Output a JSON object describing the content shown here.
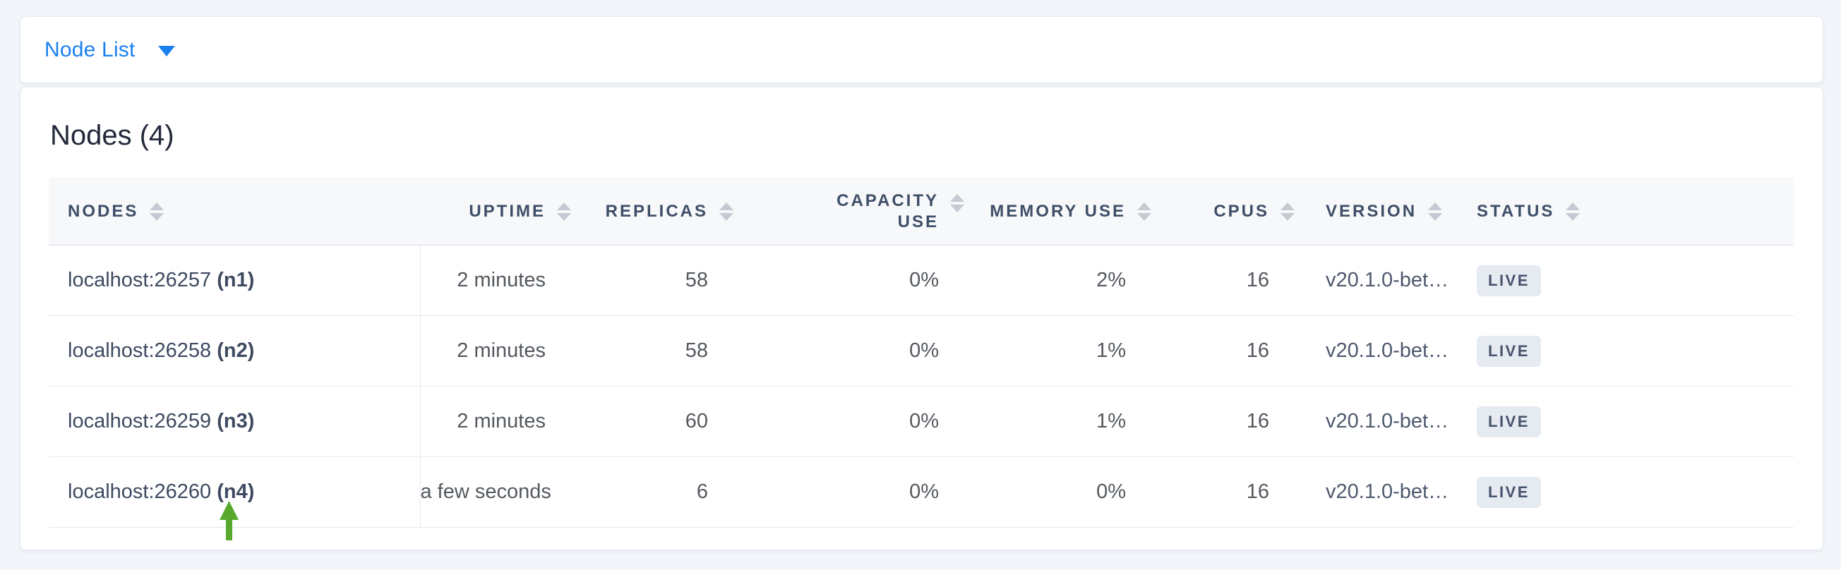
{
  "toolbar": {
    "view_selector": {
      "label": "Node List",
      "icon": "caret-down-icon"
    }
  },
  "content": {
    "title": "Nodes (4)",
    "table": {
      "columns": [
        {
          "key": "nodes",
          "label": "NODES",
          "align": "left",
          "sortable": true,
          "wrap": false
        },
        {
          "key": "uptime",
          "label": "UPTIME",
          "align": "right",
          "sortable": true,
          "wrap": false
        },
        {
          "key": "replicas",
          "label": "REPLICAS",
          "align": "right",
          "sortable": true,
          "wrap": false
        },
        {
          "key": "capacity_use",
          "label": "CAPACITY USE",
          "align": "right",
          "sortable": true,
          "wrap": true
        },
        {
          "key": "memory_use",
          "label": "MEMORY USE",
          "align": "right",
          "sortable": true,
          "wrap": false
        },
        {
          "key": "cpus",
          "label": "CPUS",
          "align": "right",
          "sortable": true,
          "wrap": false
        },
        {
          "key": "version",
          "label": "VERSION",
          "align": "left",
          "sortable": true,
          "wrap": false
        },
        {
          "key": "status",
          "label": "STATUS",
          "align": "left",
          "sortable": true,
          "wrap": false
        }
      ],
      "rows": [
        {
          "address": "localhost:26257",
          "node_id": "(n1)",
          "uptime": "2 minutes",
          "replicas": "58",
          "capacity_use": "0%",
          "memory_use": "2%",
          "cpus": "16",
          "version": "v20.1.0-bet…",
          "status": "LIVE"
        },
        {
          "address": "localhost:26258",
          "node_id": "(n2)",
          "uptime": "2 minutes",
          "replicas": "58",
          "capacity_use": "0%",
          "memory_use": "1%",
          "cpus": "16",
          "version": "v20.1.0-bet…",
          "status": "LIVE"
        },
        {
          "address": "localhost:26259",
          "node_id": "(n3)",
          "uptime": "2 minutes",
          "replicas": "60",
          "capacity_use": "0%",
          "memory_use": "1%",
          "cpus": "16",
          "version": "v20.1.0-bet…",
          "status": "LIVE"
        },
        {
          "address": "localhost:26260",
          "node_id": "(n4)",
          "uptime": "a few seconds",
          "replicas": "6",
          "capacity_use": "0%",
          "memory_use": "0%",
          "cpus": "16",
          "version": "v20.1.0-bet…",
          "status": "LIVE"
        }
      ]
    },
    "annotation": {
      "type": "arrow-up",
      "points_at": "localhost:26260 (n4)",
      "color": "#57a82d"
    }
  },
  "colors": {
    "page_background": "#f2f5f9",
    "card_background": "#ffffff",
    "accent_blue": "#1a80f2",
    "header_text": "#3e4e68",
    "cell_text": "#54595f",
    "node_text": "#3d4a60",
    "badge_background": "#e6eaf1",
    "badge_text": "#46536c",
    "arrow_green": "#57a82d"
  }
}
